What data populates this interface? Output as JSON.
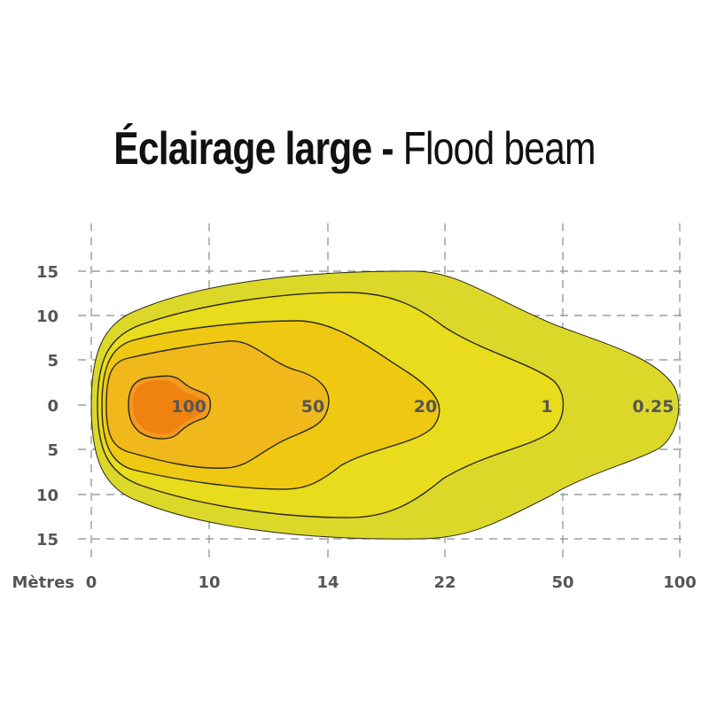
{
  "title": {
    "bold_part": "Éclairage large -",
    "light_part": " Flood beam"
  },
  "chart_data": {
    "type": "area",
    "title": "Éclairage large - Flood beam",
    "xlabel": "Mètres",
    "ylabel": "",
    "x_ticks": [
      "0",
      "10",
      "14",
      "22",
      "50",
      "100"
    ],
    "y_ticks": [
      "15",
      "10",
      "5",
      "0",
      "5",
      "10",
      "15"
    ],
    "ylim": [
      -15,
      15
    ],
    "grid": true,
    "zones": [
      {
        "label": "0.25",
        "color": "#dcd82a"
      },
      {
        "label": "1",
        "color": "#e8dc1c"
      },
      {
        "label": "20",
        "color": "#efc812"
      },
      {
        "label": "50",
        "color": "#f0b81a"
      },
      {
        "label": "100",
        "color": "#f29a1e"
      },
      {
        "label": "",
        "color": "#f08210"
      }
    ]
  }
}
